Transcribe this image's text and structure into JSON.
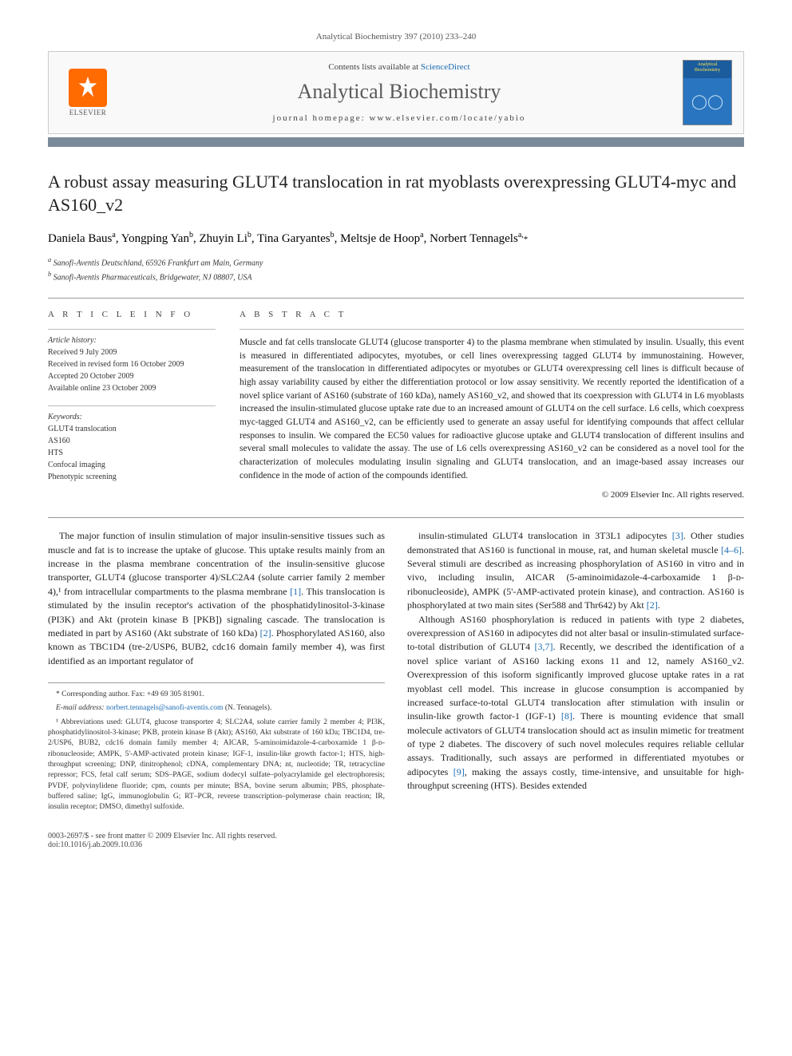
{
  "header": {
    "journal_ref": "Analytical Biochemistry 397 (2010) 233–240",
    "contents_prefix": "Contents lists available at ",
    "sciencedirect": "ScienceDirect",
    "journal_name": "Analytical Biochemistry",
    "homepage_prefix": "journal homepage: ",
    "homepage_url": "www.elsevier.com/locate/yabio",
    "elsevier_label": "ELSEVIER",
    "cover_label": "Analytical Biochemistry"
  },
  "article": {
    "title": "A robust assay measuring GLUT4 translocation in rat myoblasts overexpressing GLUT4-myc and AS160_v2",
    "authors_html": "Daniela Baus<sup>a</sup>, Yongping Yan<sup>b</sup>, Zhuyin Li<sup>b</sup>, Tina Garyantes<sup>b</sup>, Meltsje de Hoop<sup>a</sup>, Norbert Tennagels<sup>a,</sup><span class='corr'>*</span>",
    "affiliations": [
      "a Sanofi-Aventis Deutschland, 65926 Frankfurt am Main, Germany",
      "b Sanofi-Aventis Pharmaceuticals, Bridgewater, NJ 08807, USA"
    ]
  },
  "info": {
    "heading": "A R T I C L E   I N F O",
    "history_label": "Article history:",
    "history": "Received 9 July 2009\nReceived in revised form 16 October 2009\nAccepted 20 October 2009\nAvailable online 23 October 2009",
    "keywords_label": "Keywords:",
    "keywords": "GLUT4 translocation\nAS160\nHTS\nConfocal imaging\nPhenotypic screening"
  },
  "abstract": {
    "heading": "A B S T R A C T",
    "text": "Muscle and fat cells translocate GLUT4 (glucose transporter 4) to the plasma membrane when stimulated by insulin. Usually, this event is measured in differentiated adipocytes, myotubes, or cell lines overexpressing tagged GLUT4 by immunostaining. However, measurement of the translocation in differentiated adipocytes or myotubes or GLUT4 overexpressing cell lines is difficult because of high assay variability caused by either the differentiation protocol or low assay sensitivity. We recently reported the identification of a novel splice variant of AS160 (substrate of 160 kDa), namely AS160_v2, and showed that its coexpression with GLUT4 in L6 myoblasts increased the insulin-stimulated glucose uptake rate due to an increased amount of GLUT4 on the cell surface. L6 cells, which coexpress myc-tagged GLUT4 and AS160_v2, can be efficiently used to generate an assay useful for identifying compounds that affect cellular responses to insulin. We compared the EC50 values for radioactive glucose uptake and GLUT4 translocation of different insulins and several small molecules to validate the assay. The use of L6 cells overexpressing AS160_v2 can be considered as a novel tool for the characterization of molecules modulating insulin signaling and GLUT4 translocation, and an image-based assay increases our confidence in the mode of action of the compounds identified.",
    "copyright": "© 2009 Elsevier Inc. All rights reserved."
  },
  "body": {
    "left": "The major function of insulin stimulation of major insulin-sensitive tissues such as muscle and fat is to increase the uptake of glucose. This uptake results mainly from an increase in the plasma membrane concentration of the insulin-sensitive glucose transporter, GLUT4 (glucose transporter 4)/SLC2A4 (solute carrier family 2 member 4),¹ from intracellular compartments to the plasma membrane <span class='ref-link'>[1]</span>. This translocation is stimulated by the insulin receptor's activation of the phosphatidylinositol-3-kinase (PI3K) and Akt (protein kinase B [PKB]) signaling cascade. The translocation is mediated in part by AS160 (Akt substrate of 160 kDa) <span class='ref-link'>[2]</span>. Phosphorylated AS160, also known as TBC1D4 (tre-2/USP6, BUB2, cdc16 domain family member 4), was first identified as an important regulator of",
    "right_p1": "insulin-stimulated GLUT4 translocation in 3T3L1 adipocytes <span class='ref-link'>[3]</span>. Other studies demonstrated that AS160 is functional in mouse, rat, and human skeletal muscle <span class='ref-link'>[4–6]</span>. Several stimuli are described as increasing phosphorylation of AS160 in vitro and in vivo, including insulin, AICAR (5-aminoimidazole-4-carboxamide 1 β-ᴅ-ribonucleoside), AMPK (5'-AMP-activated protein kinase), and contraction. AS160 is phosphorylated at two main sites (Ser588 and Thr642) by Akt <span class='ref-link'>[2]</span>.",
    "right_p2": "Although AS160 phosphorylation is reduced in patients with type 2 diabetes, overexpression of AS160 in adipocytes did not alter basal or insulin-stimulated surface-to-total distribution of GLUT4 <span class='ref-link'>[3,7]</span>. Recently, we described the identification of a novel splice variant of AS160 lacking exons 11 and 12, namely AS160_v2. Overexpression of this isoform significantly improved glucose uptake rates in a rat myoblast cell model. This increase in glucose consumption is accompanied by increased surface-to-total GLUT4 translocation after stimulation with insulin or insulin-like growth factor-1 (IGF-1) <span class='ref-link'>[8]</span>. There is mounting evidence that small molecule activators of GLUT4 translocation should act as insulin mimetic for treatment of type 2 diabetes. The discovery of such novel molecules requires reliable cellular assays. Traditionally, such assays are performed in differentiated myotubes or adipocytes <span class='ref-link'>[9]</span>, making the assays costly, time-intensive, and unsuitable for high-throughput screening (HTS). Besides extended"
  },
  "footnotes": {
    "corr": "* Corresponding author. Fax: +49 69 305 81901.",
    "email_label": "E-mail address: ",
    "email": "norbert.tennagels@sanofi-aventis.com",
    "email_suffix": " (N. Tennagels).",
    "abbrev": "¹ Abbreviations used: GLUT4, glucose transporter 4; SLC2A4, solute carrier family 2 member 4; PI3K, phosphatidylinositol-3-kinase; PKB, protein kinase B (Akt); AS160, Akt substrate of 160 kDa; TBC1D4, tre-2/USP6, BUB2, cdc16 domain family member 4; AICAR, 5-aminoimidazole-4-carboxamide 1 β-ᴅ-ribonucleoside; AMPK, 5'-AMP-activated protein kinase; IGF-1, insulin-like growth factor-1; HTS, high-throughput screening; DNP, dinitrophenol; cDNA, complementary DNA; nt, nucleotide; TR, tetracycline repressor; FCS, fetal calf serum; SDS–PAGE, sodium dodecyl sulfate–polyacrylamide gel electrophoresis; PVDF, polyvinylidene fluoride; cpm, counts per minute; BSA, bovine serum albumin; PBS, phosphate-buffered saline; IgG, immunoglobulin G; RT–PCR, reverse transcription–polymerase chain reaction; IR, insulin receptor; DMSO, dimethyl sulfoxide."
  },
  "footer": {
    "left": "0003-2697/$ - see front matter © 2009 Elsevier Inc. All rights reserved.",
    "doi": "doi:10.1016/j.ab.2009.10.036"
  },
  "colors": {
    "hr_bar": "#7a8a99",
    "link": "#1a6bb3",
    "elsevier_orange": "#ff6b00",
    "cover_blue": "#1a5c9e"
  }
}
